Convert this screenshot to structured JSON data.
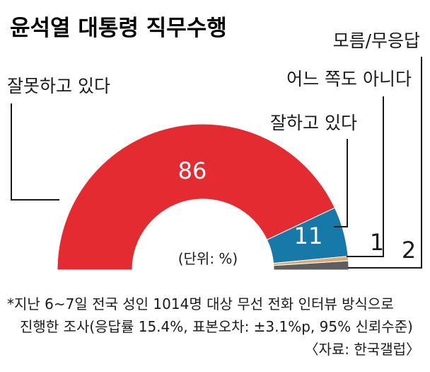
{
  "header": {
    "title": "윤석열 대통령 직무수행"
  },
  "chart_data": {
    "type": "pie",
    "title": "윤석열 대통령 직무수행",
    "unit_label": "(단위: %)",
    "categories": [
      "잘못하고 있다",
      "잘하고 있다",
      "어느 쪽도 아니다",
      "모름/무응답"
    ],
    "values": [
      86,
      11,
      1,
      2
    ],
    "colors": [
      "#e42b31",
      "#1779a7",
      "#d9a875",
      "#5e5e5e"
    ]
  },
  "footer": {
    "note_line1": "*지난 6~7일 전국 성인 1014명 대상 무선 전화 인터뷰 방식으로",
    "note_line2": "진행한 조사(응답률 15.4%, 표본오차: ±3.1%p, 95% 신뢰수준)",
    "source": "〈자료: 한국갤럽〉"
  }
}
